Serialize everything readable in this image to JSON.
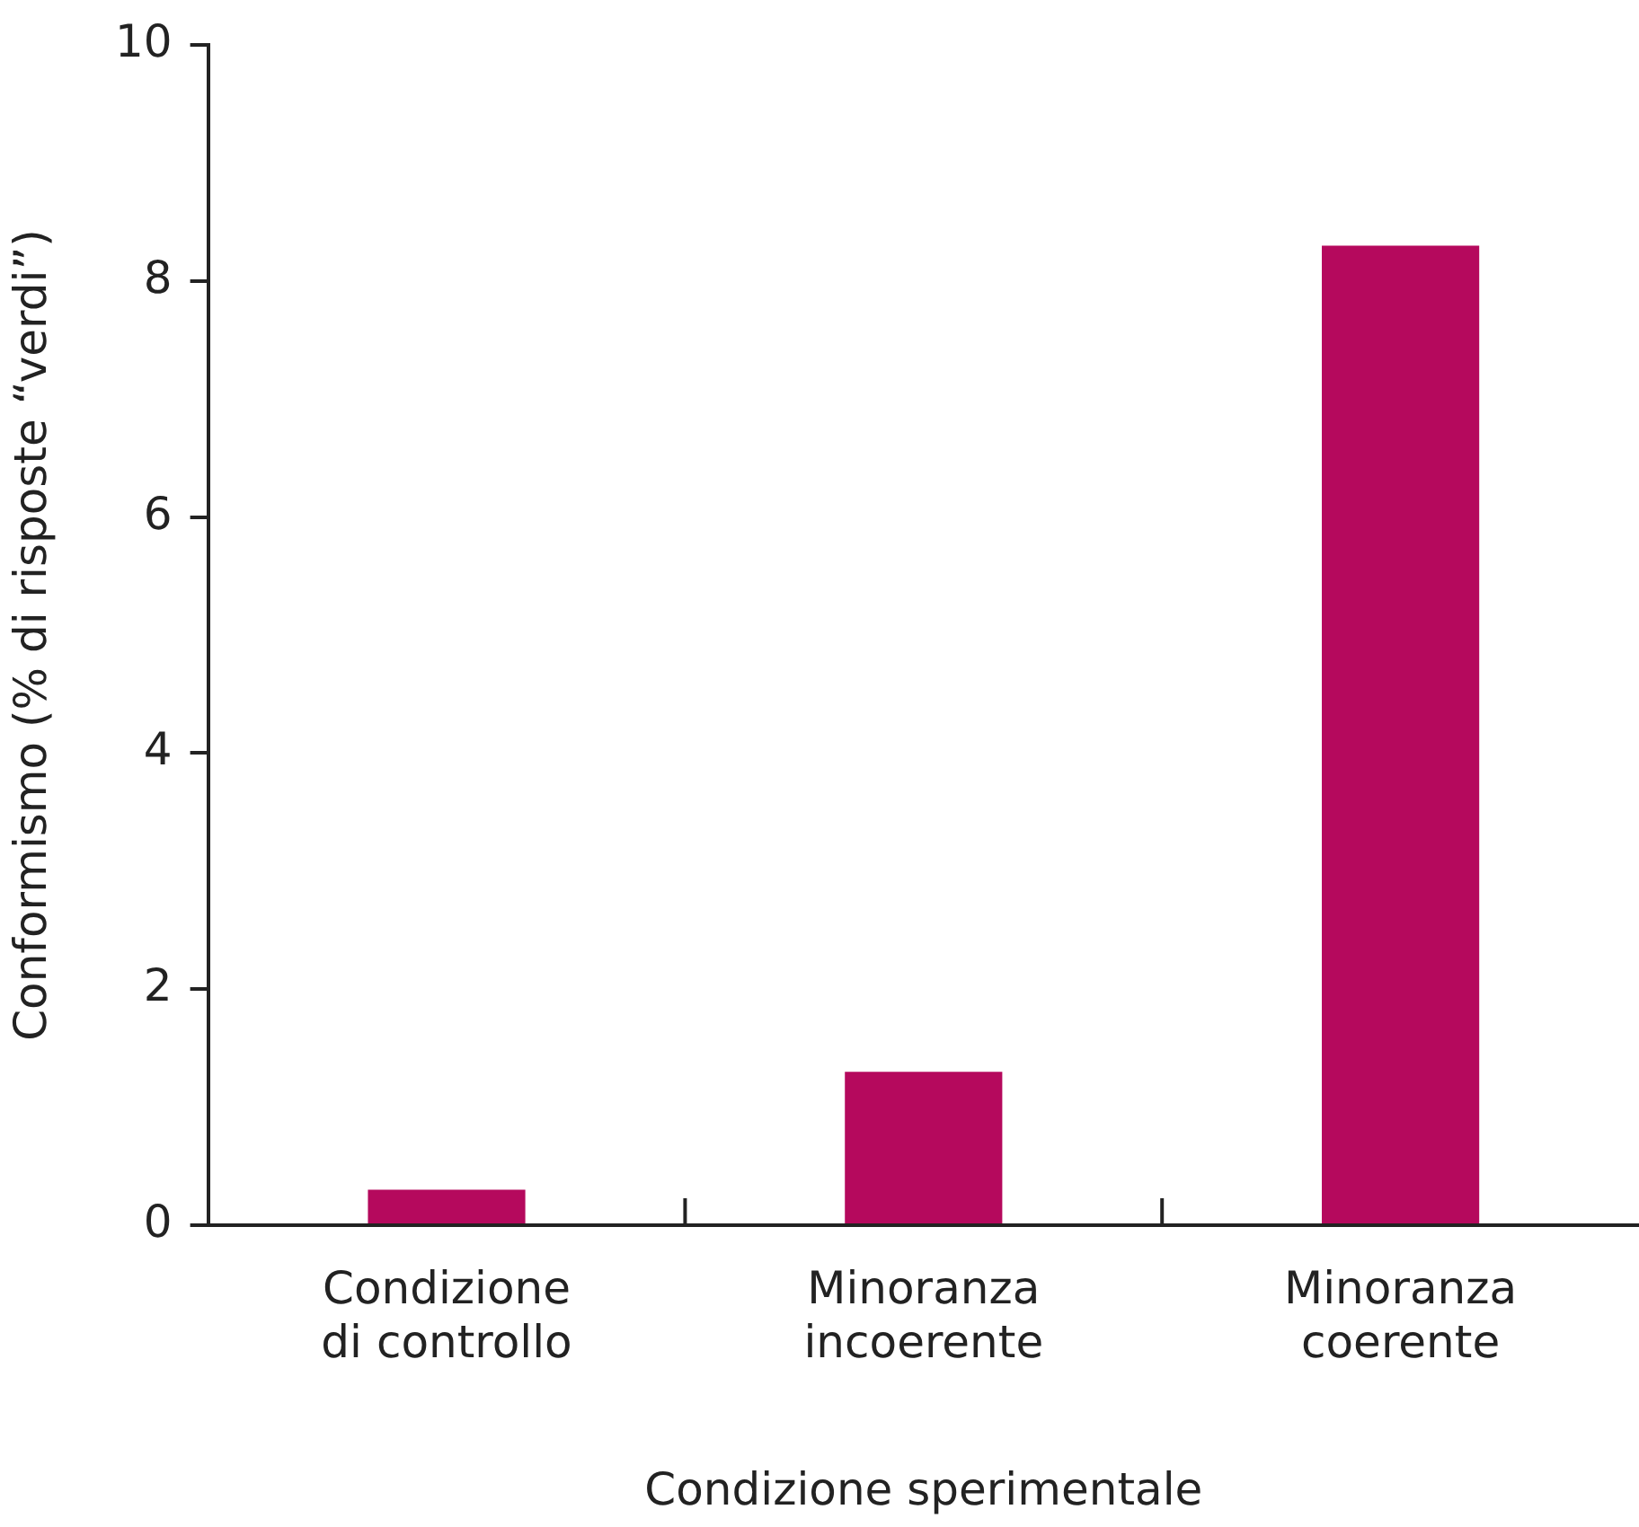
{
  "chart_data": {
    "type": "bar",
    "xlabel": "Condizione sperimentale",
    "ylabel": "Conformismo (% di risposte “verdi”)",
    "categories": [
      "Condizione di controllo",
      "Minoranza incoerente",
      "Minoranza coerente"
    ],
    "values": [
      0.3,
      1.3,
      8.3
    ],
    "color": "#b5095d",
    "ylim": [
      0,
      10
    ],
    "yticks": [
      0,
      2,
      4,
      6,
      8,
      10
    ],
    "grid": false,
    "legend": false
  }
}
